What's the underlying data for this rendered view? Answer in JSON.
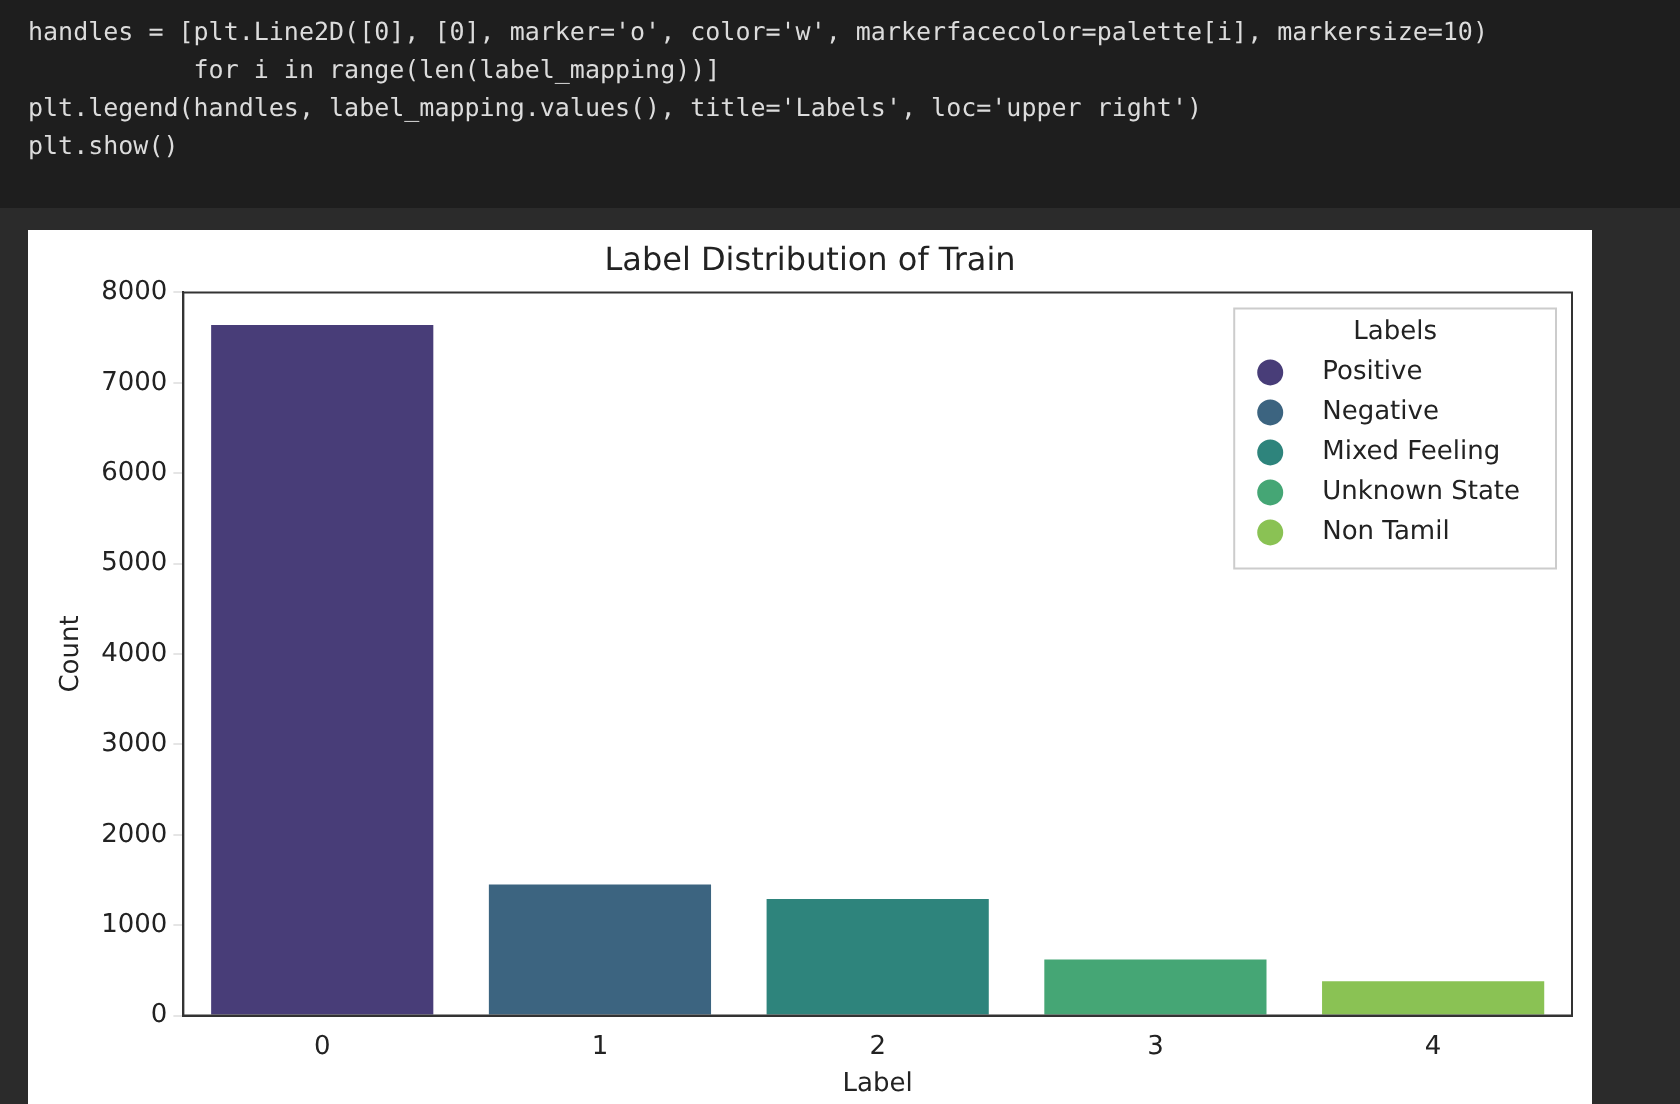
{
  "chart_data": {
    "type": "bar",
    "title": "Label Distribution of Train",
    "xlabel": "Label",
    "ylabel": "Count",
    "legend_title": "Labels",
    "annotations": [
      "handles = [plt.Line2D([0], [0], marker='o', color='w', markerfacecolor=palette[i], markersize=10)",
      "           for i in range(len(label_mapping))]",
      "plt.legend(handles, label_mapping.values(), title='Labels', loc='upper right')",
      "plt.show()"
    ],
    "categories": [
      "0",
      "1",
      "2",
      "3",
      "4"
    ],
    "series": [
      {
        "name": "Positive",
        "color": "#483d78",
        "values": [
          7640,
          null,
          null,
          null,
          null
        ]
      },
      {
        "name": "Negative",
        "color": "#3c6480",
        "values": [
          null,
          1450,
          null,
          null,
          null
        ]
      },
      {
        "name": "Mixed Feeling",
        "color": "#2e847c",
        "values": [
          null,
          null,
          1290,
          null,
          null
        ]
      },
      {
        "name": "Unknown State",
        "color": "#45a675",
        "values": [
          null,
          null,
          null,
          620,
          null
        ]
      },
      {
        "name": "Non Tamil",
        "color": "#8ac254",
        "values": [
          null,
          null,
          null,
          null,
          380
        ]
      }
    ],
    "ylim": [
      0,
      8000
    ],
    "yticks": [
      0,
      1000,
      2000,
      3000,
      4000,
      5000,
      6000,
      7000,
      8000
    ],
    "grid": false,
    "legend": "top right",
    "marker": "circle"
  }
}
